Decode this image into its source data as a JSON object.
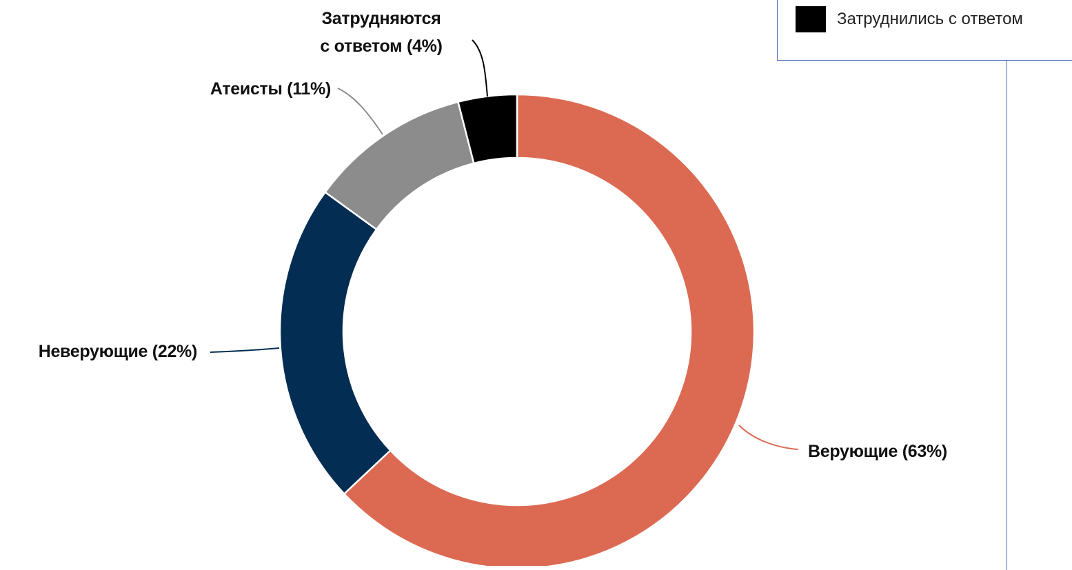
{
  "chart_data": {
    "type": "pie",
    "variant": "donut",
    "slices": [
      {
        "label": "Верующие (63%)",
        "value": 63,
        "color": "#dc6a53"
      },
      {
        "label": "Неверующие (22%)",
        "value": 22,
        "color": "#032d52"
      },
      {
        "label": "Атеисты (11%)",
        "value": 11,
        "color": "#8c8c8c"
      },
      {
        "label_lines": [
          "Затрудняются",
          "с ответом (4%)"
        ],
        "value": 4,
        "color": "#000000"
      }
    ],
    "start": "12 o'clock",
    "direction": "clockwise",
    "labels": "outside with leader lines"
  },
  "legend": {
    "items": [
      {
        "label": "Затруднились с ответом",
        "color": "#000000"
      }
    ]
  }
}
